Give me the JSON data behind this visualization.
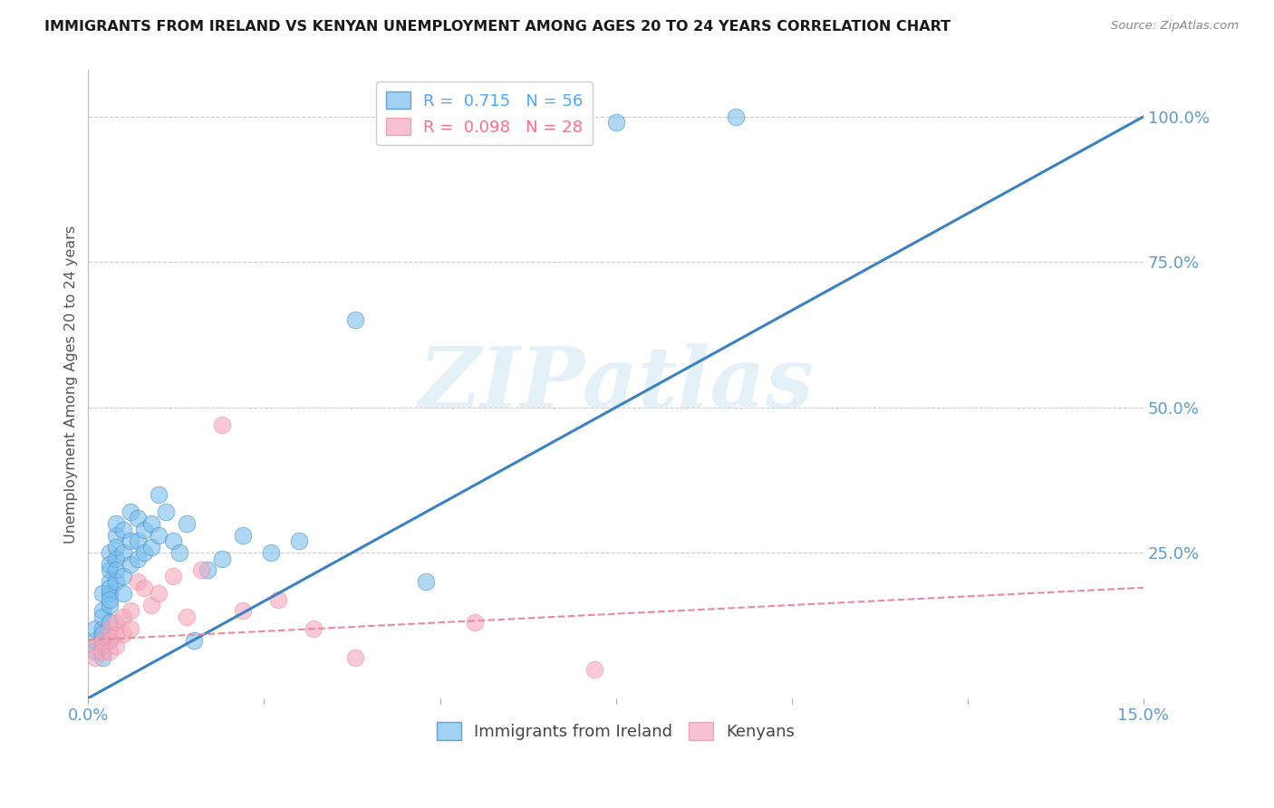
{
  "title": "IMMIGRANTS FROM IRELAND VS KENYAN UNEMPLOYMENT AMONG AGES 20 TO 24 YEARS CORRELATION CHART",
  "source": "Source: ZipAtlas.com",
  "xlabel": "",
  "ylabel": "Unemployment Among Ages 20 to 24 years",
  "xlim": [
    0.0,
    0.15
  ],
  "ylim": [
    0.0,
    1.08
  ],
  "xticks": [
    0.0,
    0.025,
    0.05,
    0.075,
    0.1,
    0.125,
    0.15
  ],
  "xticklabels": [
    "0.0%",
    "",
    "",
    "",
    "",
    "",
    "15.0%"
  ],
  "yticks_right": [
    0.0,
    0.25,
    0.5,
    0.75,
    1.0
  ],
  "yticklabels_right": [
    "",
    "25.0%",
    "50.0%",
    "75.0%",
    "100.0%"
  ],
  "legend_entries": [
    {
      "label": "R =  0.715   N = 56",
      "color": "#4da6ff"
    },
    {
      "label": "R =  0.098   N = 28",
      "color": "#ff6b8a"
    }
  ],
  "blue_scatter_x": [
    0.001,
    0.001,
    0.001,
    0.002,
    0.002,
    0.002,
    0.002,
    0.002,
    0.002,
    0.002,
    0.003,
    0.003,
    0.003,
    0.003,
    0.003,
    0.003,
    0.003,
    0.003,
    0.003,
    0.003,
    0.004,
    0.004,
    0.004,
    0.004,
    0.004,
    0.004,
    0.005,
    0.005,
    0.005,
    0.005,
    0.006,
    0.006,
    0.006,
    0.007,
    0.007,
    0.007,
    0.008,
    0.008,
    0.009,
    0.009,
    0.01,
    0.01,
    0.011,
    0.012,
    0.013,
    0.014,
    0.015,
    0.017,
    0.019,
    0.022,
    0.026,
    0.03,
    0.038,
    0.048,
    0.075,
    0.092
  ],
  "blue_scatter_y": [
    0.1,
    0.08,
    0.12,
    0.15,
    0.18,
    0.12,
    0.09,
    0.14,
    0.11,
    0.07,
    0.2,
    0.22,
    0.18,
    0.25,
    0.19,
    0.16,
    0.13,
    0.1,
    0.23,
    0.17,
    0.28,
    0.24,
    0.2,
    0.3,
    0.26,
    0.22,
    0.29,
    0.25,
    0.21,
    0.18,
    0.32,
    0.27,
    0.23,
    0.31,
    0.27,
    0.24,
    0.29,
    0.25,
    0.3,
    0.26,
    0.35,
    0.28,
    0.32,
    0.27,
    0.25,
    0.3,
    0.1,
    0.22,
    0.24,
    0.28,
    0.25,
    0.27,
    0.65,
    0.2,
    0.99,
    1.0
  ],
  "pink_scatter_x": [
    0.001,
    0.001,
    0.002,
    0.002,
    0.003,
    0.003,
    0.003,
    0.004,
    0.004,
    0.004,
    0.005,
    0.005,
    0.006,
    0.006,
    0.007,
    0.008,
    0.009,
    0.01,
    0.012,
    0.014,
    0.016,
    0.019,
    0.022,
    0.027,
    0.032,
    0.038,
    0.055,
    0.072
  ],
  "pink_scatter_y": [
    0.09,
    0.07,
    0.1,
    0.08,
    0.12,
    0.1,
    0.08,
    0.11,
    0.09,
    0.13,
    0.14,
    0.11,
    0.15,
    0.12,
    0.2,
    0.19,
    0.16,
    0.18,
    0.21,
    0.14,
    0.22,
    0.47,
    0.15,
    0.17,
    0.12,
    0.07,
    0.13,
    0.05
  ],
  "blue_line_x": [
    0.0,
    0.15
  ],
  "blue_line_y": [
    0.0,
    1.0
  ],
  "pink_line_x": [
    0.0,
    0.15
  ],
  "pink_line_y": [
    0.1,
    0.19
  ],
  "blue_color": "#7abfee",
  "pink_color": "#f5a8bc",
  "blue_line_color": "#3a82c4",
  "pink_line_color": "#e88aa0",
  "watermark_text": "ZIPatlas",
  "background_color": "#ffffff",
  "grid_color": "#cccccc",
  "title_color": "#1a1a1a",
  "axis_tick_color": "#5b9bd5",
  "right_tick_color": "#5b9bd5"
}
